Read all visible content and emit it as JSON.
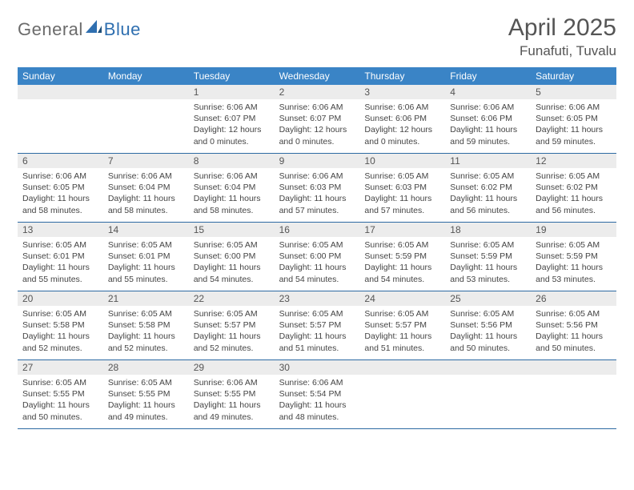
{
  "brand": {
    "part1": "General",
    "part2": "Blue"
  },
  "title": "April 2025",
  "location": "Funafuti, Tuvalu",
  "colors": {
    "header_bg": "#3a84c6",
    "rule": "#2d6aa3",
    "daynum_bg": "#ececec",
    "text": "#555555",
    "body_text": "#444444",
    "logo_gray": "#6b6b6b",
    "logo_blue": "#2f6fb0"
  },
  "weekdays": [
    "Sunday",
    "Monday",
    "Tuesday",
    "Wednesday",
    "Thursday",
    "Friday",
    "Saturday"
  ],
  "weeks": [
    [
      {
        "empty": true
      },
      {
        "empty": true
      },
      {
        "day": "1",
        "sunrise": "Sunrise: 6:06 AM",
        "sunset": "Sunset: 6:07 PM",
        "daylight": "Daylight: 12 hours and 0 minutes."
      },
      {
        "day": "2",
        "sunrise": "Sunrise: 6:06 AM",
        "sunset": "Sunset: 6:07 PM",
        "daylight": "Daylight: 12 hours and 0 minutes."
      },
      {
        "day": "3",
        "sunrise": "Sunrise: 6:06 AM",
        "sunset": "Sunset: 6:06 PM",
        "daylight": "Daylight: 12 hours and 0 minutes."
      },
      {
        "day": "4",
        "sunrise": "Sunrise: 6:06 AM",
        "sunset": "Sunset: 6:06 PM",
        "daylight": "Daylight: 11 hours and 59 minutes."
      },
      {
        "day": "5",
        "sunrise": "Sunrise: 6:06 AM",
        "sunset": "Sunset: 6:05 PM",
        "daylight": "Daylight: 11 hours and 59 minutes."
      }
    ],
    [
      {
        "day": "6",
        "sunrise": "Sunrise: 6:06 AM",
        "sunset": "Sunset: 6:05 PM",
        "daylight": "Daylight: 11 hours and 58 minutes."
      },
      {
        "day": "7",
        "sunrise": "Sunrise: 6:06 AM",
        "sunset": "Sunset: 6:04 PM",
        "daylight": "Daylight: 11 hours and 58 minutes."
      },
      {
        "day": "8",
        "sunrise": "Sunrise: 6:06 AM",
        "sunset": "Sunset: 6:04 PM",
        "daylight": "Daylight: 11 hours and 58 minutes."
      },
      {
        "day": "9",
        "sunrise": "Sunrise: 6:06 AM",
        "sunset": "Sunset: 6:03 PM",
        "daylight": "Daylight: 11 hours and 57 minutes."
      },
      {
        "day": "10",
        "sunrise": "Sunrise: 6:05 AM",
        "sunset": "Sunset: 6:03 PM",
        "daylight": "Daylight: 11 hours and 57 minutes."
      },
      {
        "day": "11",
        "sunrise": "Sunrise: 6:05 AM",
        "sunset": "Sunset: 6:02 PM",
        "daylight": "Daylight: 11 hours and 56 minutes."
      },
      {
        "day": "12",
        "sunrise": "Sunrise: 6:05 AM",
        "sunset": "Sunset: 6:02 PM",
        "daylight": "Daylight: 11 hours and 56 minutes."
      }
    ],
    [
      {
        "day": "13",
        "sunrise": "Sunrise: 6:05 AM",
        "sunset": "Sunset: 6:01 PM",
        "daylight": "Daylight: 11 hours and 55 minutes."
      },
      {
        "day": "14",
        "sunrise": "Sunrise: 6:05 AM",
        "sunset": "Sunset: 6:01 PM",
        "daylight": "Daylight: 11 hours and 55 minutes."
      },
      {
        "day": "15",
        "sunrise": "Sunrise: 6:05 AM",
        "sunset": "Sunset: 6:00 PM",
        "daylight": "Daylight: 11 hours and 54 minutes."
      },
      {
        "day": "16",
        "sunrise": "Sunrise: 6:05 AM",
        "sunset": "Sunset: 6:00 PM",
        "daylight": "Daylight: 11 hours and 54 minutes."
      },
      {
        "day": "17",
        "sunrise": "Sunrise: 6:05 AM",
        "sunset": "Sunset: 5:59 PM",
        "daylight": "Daylight: 11 hours and 54 minutes."
      },
      {
        "day": "18",
        "sunrise": "Sunrise: 6:05 AM",
        "sunset": "Sunset: 5:59 PM",
        "daylight": "Daylight: 11 hours and 53 minutes."
      },
      {
        "day": "19",
        "sunrise": "Sunrise: 6:05 AM",
        "sunset": "Sunset: 5:59 PM",
        "daylight": "Daylight: 11 hours and 53 minutes."
      }
    ],
    [
      {
        "day": "20",
        "sunrise": "Sunrise: 6:05 AM",
        "sunset": "Sunset: 5:58 PM",
        "daylight": "Daylight: 11 hours and 52 minutes."
      },
      {
        "day": "21",
        "sunrise": "Sunrise: 6:05 AM",
        "sunset": "Sunset: 5:58 PM",
        "daylight": "Daylight: 11 hours and 52 minutes."
      },
      {
        "day": "22",
        "sunrise": "Sunrise: 6:05 AM",
        "sunset": "Sunset: 5:57 PM",
        "daylight": "Daylight: 11 hours and 52 minutes."
      },
      {
        "day": "23",
        "sunrise": "Sunrise: 6:05 AM",
        "sunset": "Sunset: 5:57 PM",
        "daylight": "Daylight: 11 hours and 51 minutes."
      },
      {
        "day": "24",
        "sunrise": "Sunrise: 6:05 AM",
        "sunset": "Sunset: 5:57 PM",
        "daylight": "Daylight: 11 hours and 51 minutes."
      },
      {
        "day": "25",
        "sunrise": "Sunrise: 6:05 AM",
        "sunset": "Sunset: 5:56 PM",
        "daylight": "Daylight: 11 hours and 50 minutes."
      },
      {
        "day": "26",
        "sunrise": "Sunrise: 6:05 AM",
        "sunset": "Sunset: 5:56 PM",
        "daylight": "Daylight: 11 hours and 50 minutes."
      }
    ],
    [
      {
        "day": "27",
        "sunrise": "Sunrise: 6:05 AM",
        "sunset": "Sunset: 5:55 PM",
        "daylight": "Daylight: 11 hours and 50 minutes."
      },
      {
        "day": "28",
        "sunrise": "Sunrise: 6:05 AM",
        "sunset": "Sunset: 5:55 PM",
        "daylight": "Daylight: 11 hours and 49 minutes."
      },
      {
        "day": "29",
        "sunrise": "Sunrise: 6:06 AM",
        "sunset": "Sunset: 5:55 PM",
        "daylight": "Daylight: 11 hours and 49 minutes."
      },
      {
        "day": "30",
        "sunrise": "Sunrise: 6:06 AM",
        "sunset": "Sunset: 5:54 PM",
        "daylight": "Daylight: 11 hours and 48 minutes."
      },
      {
        "empty": true
      },
      {
        "empty": true
      },
      {
        "empty": true
      }
    ]
  ]
}
